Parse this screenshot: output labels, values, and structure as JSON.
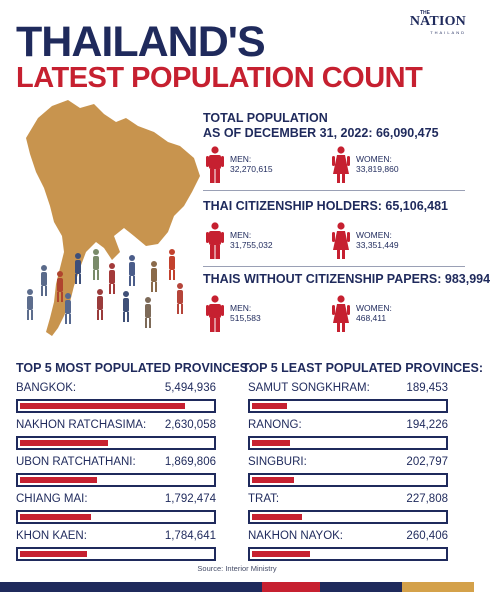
{
  "brand": {
    "the": "THE",
    "name": "NATION",
    "sub": "THAILAND"
  },
  "title": {
    "main": "THAILAND'S",
    "sub": "LATEST POPULATION COUNT"
  },
  "sections": [
    {
      "title_line1": "TOTAL POPULATION",
      "title_line2": "AS OF DECEMBER 31, 2022: 66,090,475",
      "men_label": "MEN:",
      "men_value": "32,270,615",
      "women_label": "WOMEN:",
      "women_value": "33,819,860"
    },
    {
      "title_line1": "THAI CITIZENSHIP HOLDERS: 65,106,481",
      "men_label": "MEN:",
      "men_value": "31,755,032",
      "women_label": "WOMEN:",
      "women_value": "33,351,449"
    },
    {
      "title_line1": "THAIS WITHOUT CITIZENSHIP PAPERS: 983,994",
      "men_label": "MEN:",
      "men_value": "515,583",
      "women_label": "WOMEN:",
      "women_value": "468,411"
    }
  ],
  "most_populated": {
    "heading": "TOP 5 MOST POPULATED PROVINCES:",
    "items": [
      {
        "name": "BANGKOK:",
        "value": "5,494,936",
        "fill": 0.86
      },
      {
        "name": "NAKHON RATCHASIMA:",
        "value": "2,630,058",
        "fill": 0.46
      },
      {
        "name": "UBON RATCHATHANI:",
        "value": "1,869,806",
        "fill": 0.4
      },
      {
        "name": "CHIANG MAI:",
        "value": "1,792,474",
        "fill": 0.37
      },
      {
        "name": "KHON KAEN:",
        "value": "1,784,641",
        "fill": 0.35
      }
    ]
  },
  "least_populated": {
    "heading": "TOP 5 LEAST POPULATED PROVINCES:",
    "items": [
      {
        "name": "SAMUT SONGKHRAM:",
        "value": "189,453",
        "fill": 0.18
      },
      {
        "name": "RANONG:",
        "value": "194,226",
        "fill": 0.2
      },
      {
        "name": "SINGBURI:",
        "value": "202,797",
        "fill": 0.22
      },
      {
        "name": "TRAT:",
        "value": "227,808",
        "fill": 0.26
      },
      {
        "name": "NAKHON NAYOK:",
        "value": "260,406",
        "fill": 0.3
      }
    ]
  },
  "source": "Source: Interior Ministry",
  "colors": {
    "navy": "#1f2a5c",
    "red": "#c62030",
    "map": "#c8944e",
    "footer": [
      "#1f2a5c",
      "#c62030",
      "#1f2a5c",
      "#d4a14a"
    ]
  }
}
